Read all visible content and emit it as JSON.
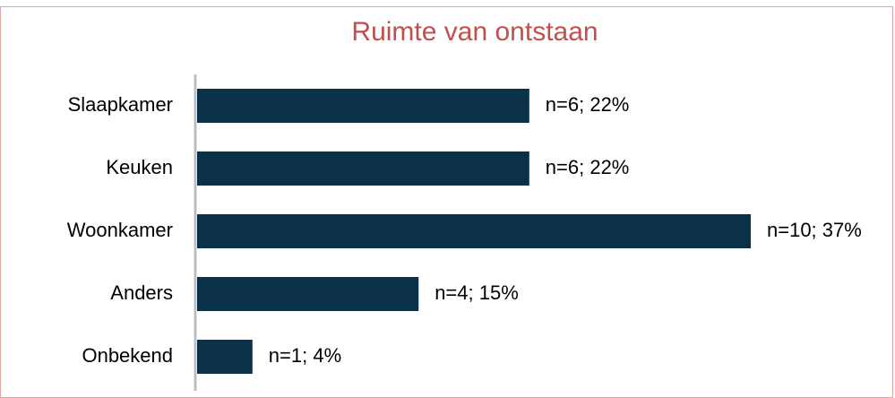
{
  "chart_data": {
    "type": "bar",
    "orientation": "horizontal",
    "title": "Ruimte van ontstaan",
    "categories": [
      "Slaapkamer",
      "Keuken",
      "Woonkamer",
      "Anders",
      "Onbekend"
    ],
    "values": [
      6,
      6,
      10,
      4,
      1
    ],
    "value_labels": [
      "n=6; 22%",
      "n=6; 22%",
      "n=10; 37%",
      "n=4; 15%",
      "n=1; 4%"
    ],
    "color": "#0b3049"
  }
}
